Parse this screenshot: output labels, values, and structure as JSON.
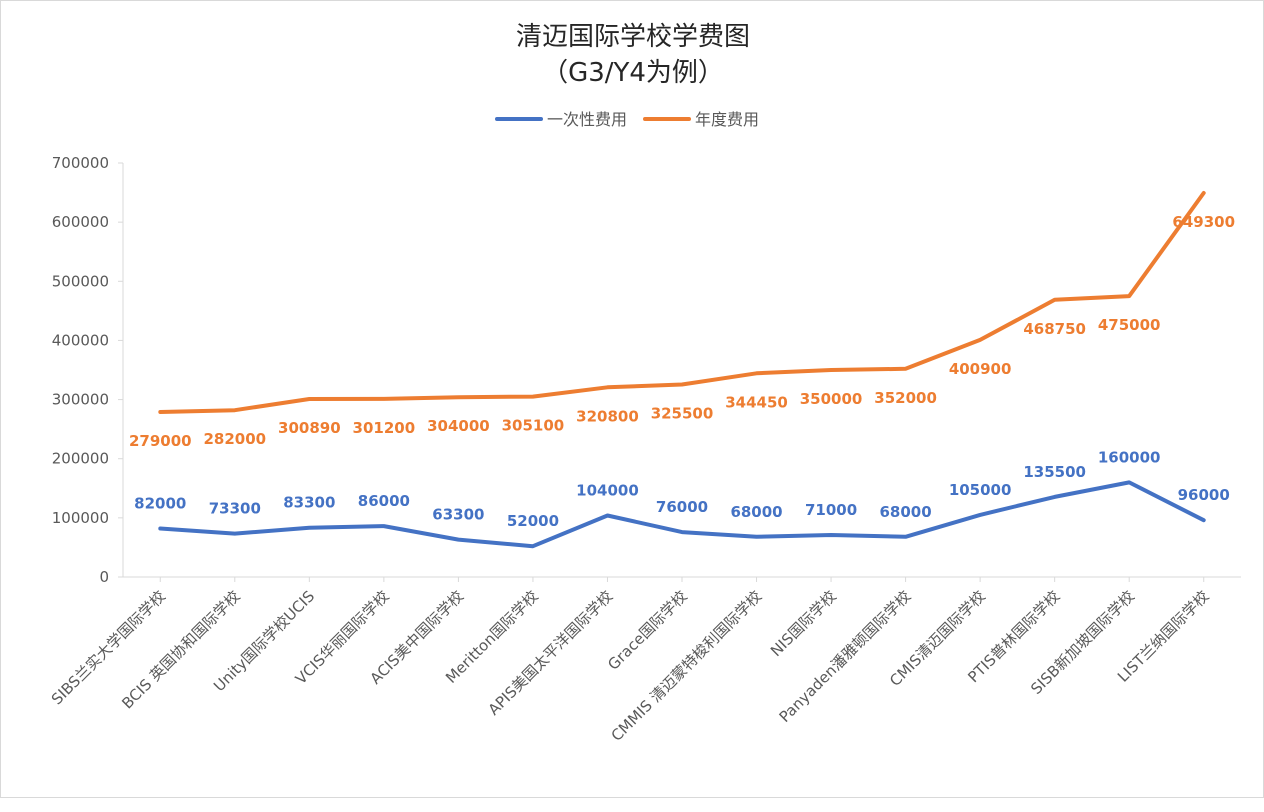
{
  "chart_data": {
    "type": "line",
    "title": "清迈国际学校学费图",
    "subtitle": "（G3/Y4为例）",
    "xlabel": "",
    "ylabel": "",
    "ylim": [
      0,
      700000
    ],
    "yticks": [
      "0",
      "100000",
      "200000",
      "300000",
      "400000",
      "500000",
      "600000",
      "700000"
    ],
    "grid": false,
    "legend_position": "top",
    "categories": [
      "SIBS兰实大学国际学校",
      "BCIS 英国协和国际学校",
      "Unity国际学校UCIS",
      "VCIS华丽国际学校",
      "ACIS美中国际学校",
      "Meritton国际学校",
      "APIS美国太平洋国际学校",
      "Grace国际学校",
      "CMMIS 清迈蒙特梭利国际学校",
      "NIS国际学校",
      "Panyaden潘雅顿国际学校",
      "CMIS清迈国际学校",
      "PTIS普林国际学校",
      "SISB新加坡国际学校",
      "LIST兰纳国际学校"
    ],
    "series": [
      {
        "name": "一次性费用",
        "color": "#4472c4",
        "values": [
          82000,
          73300,
          83300,
          86000,
          63300,
          52000,
          104000,
          76000,
          68000,
          71000,
          68000,
          105000,
          135500,
          160000,
          96000
        ],
        "labels": [
          "82000",
          "73300",
          "83300",
          "86000",
          "63300",
          "52000",
          "104000",
          "76000",
          "68000",
          "71000",
          "68000",
          "105000",
          "135500",
          "160000",
          "96000"
        ]
      },
      {
        "name": "年度费用",
        "color": "#ed7d31",
        "values": [
          279000,
          282000,
          300890,
          301200,
          304000,
          305100,
          320800,
          325500,
          344450,
          350000,
          352000,
          400900,
          468750,
          475000,
          649300
        ],
        "labels": [
          "279000",
          "282000",
          "300890",
          "301200",
          "304000",
          "305100",
          "320800",
          "325500",
          "344450",
          "350000",
          "352000",
          "400900",
          "468750",
          "475000",
          "649300"
        ]
      }
    ]
  }
}
